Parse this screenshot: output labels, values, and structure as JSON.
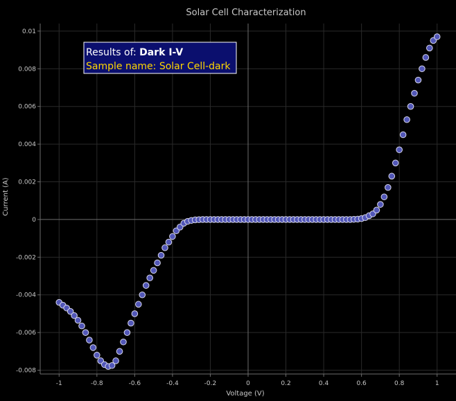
{
  "chart_data": {
    "type": "scatter",
    "title": "Solar Cell Characterization",
    "xlabel": "Voltage (V)",
    "ylabel": "Current (A)",
    "xlim": [
      -1.1,
      1.1
    ],
    "ylim": [
      -0.0082,
      0.0104
    ],
    "x_ticks": [
      -1,
      -0.8,
      -0.6,
      -0.4,
      -0.2,
      0,
      0.2,
      0.4,
      0.6,
      0.8,
      1
    ],
    "x_tick_labels": [
      "-1",
      "-0.8",
      "-0.6",
      "-0.4",
      "-0.2",
      "0",
      "0.2",
      "0.4",
      "0.6",
      "0.8",
      "1"
    ],
    "y_ticks": [
      -0.008,
      -0.006,
      -0.004,
      -0.002,
      0,
      0.002,
      0.004,
      0.006,
      0.008,
      0.01
    ],
    "y_tick_labels": [
      "-0.008",
      "-0.006",
      "-0.004",
      "-0.002",
      "0",
      "0.002",
      "0.004",
      "0.006",
      "0.008",
      "0.01"
    ],
    "grid": true,
    "annotation": {
      "line1_prefix": "Results of: ",
      "line1_value": "Dark I-V",
      "line2": "Sample name: Solar Cell-dark"
    },
    "colors": {
      "background": "#000000",
      "text": "#c8c8c8",
      "grid": "#2a2a2a",
      "axis": "#6e6e6e",
      "marker_fill": "#5257b8",
      "marker_stroke": "#d6d6ea",
      "annotation_bg": "#0b0f6e",
      "annotation_border": "#ffffff",
      "annotation_label": "#ffffff",
      "annotation_sample": "#ffd700"
    },
    "series": [
      {
        "x": [
          -1,
          -0.98,
          -0.96,
          -0.94,
          -0.92,
          -0.9,
          -0.88,
          -0.86,
          -0.84,
          -0.82,
          -0.8,
          -0.78,
          -0.76,
          -0.74,
          -0.72,
          -0.7,
          -0.68,
          -0.66,
          -0.64,
          -0.62,
          -0.6,
          -0.58,
          -0.56,
          -0.54,
          -0.52,
          -0.5,
          -0.48,
          -0.46,
          -0.44,
          -0.42,
          -0.4,
          -0.38,
          -0.36,
          -0.34,
          -0.32,
          -0.3,
          -0.28,
          -0.26,
          -0.24,
          -0.22,
          -0.2,
          -0.18,
          -0.16,
          -0.14,
          -0.12,
          -0.1,
          -0.08,
          -0.06,
          -0.04,
          -0.02,
          0,
          0.02,
          0.04,
          0.06,
          0.08,
          0.1,
          0.12,
          0.14,
          0.16,
          0.18,
          0.2,
          0.22,
          0.24,
          0.26,
          0.28,
          0.3,
          0.32,
          0.34,
          0.36,
          0.38,
          0.4,
          0.42,
          0.44,
          0.46,
          0.48,
          0.5,
          0.52,
          0.54,
          0.56,
          0.58,
          0.6,
          0.62,
          0.64,
          0.66,
          0.68,
          0.7,
          0.72,
          0.74,
          0.76,
          0.78,
          0.8,
          0.82,
          0.84,
          0.86,
          0.88,
          0.9,
          0.92,
          0.94,
          0.96,
          0.98,
          1
        ],
        "y": [
          -0.0044,
          -0.00455,
          -0.0047,
          -0.00488,
          -0.0051,
          -0.00535,
          -0.00565,
          -0.006,
          -0.0064,
          -0.0068,
          -0.0072,
          -0.0075,
          -0.0077,
          -0.0078,
          -0.00775,
          -0.0075,
          -0.007,
          -0.0065,
          -0.006,
          -0.0055,
          -0.005,
          -0.0045,
          -0.004,
          -0.0035,
          -0.0031,
          -0.0027,
          -0.0023,
          -0.0019,
          -0.0015,
          -0.0012,
          -0.0009,
          -0.0006,
          -0.0004,
          -0.0002,
          -0.0001,
          -5e-05,
          -2e-05,
          -1e-05,
          0,
          0,
          0,
          0,
          0,
          0,
          0,
          0,
          0,
          0,
          0,
          0,
          0,
          0,
          0,
          0,
          0,
          0,
          0,
          0,
          0,
          0,
          0,
          0,
          0,
          0,
          0,
          0,
          0,
          0,
          0,
          0,
          0,
          0,
          0,
          0,
          0,
          0,
          0,
          0,
          1e-05,
          2e-05,
          5e-05,
          0.0001,
          0.0002,
          0.0003,
          0.0005,
          0.0008,
          0.0012,
          0.0017,
          0.0023,
          0.003,
          0.0037,
          0.0045,
          0.0053,
          0.006,
          0.0067,
          0.0074,
          0.008,
          0.0086,
          0.0091,
          0.0095,
          0.0097
        ]
      }
    ]
  }
}
